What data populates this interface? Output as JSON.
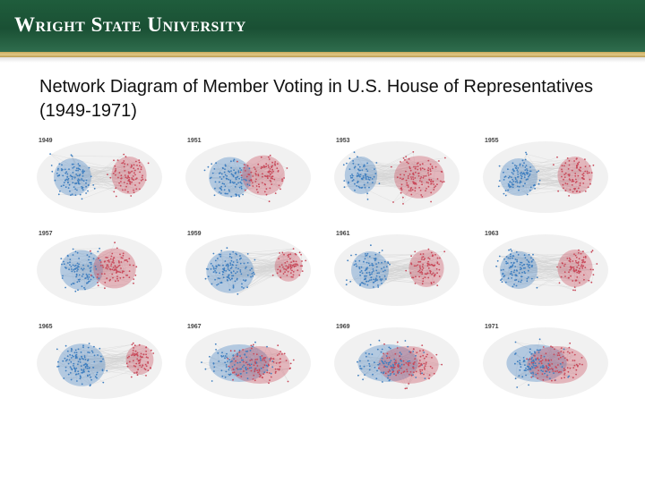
{
  "header": {
    "logo_text": "Wright State University",
    "colors": {
      "green": "#1a5034",
      "gold": "#c6a85a"
    }
  },
  "slide": {
    "title": "Network Diagram of Member Voting in U.S. House of Representatives (1949-1971)"
  },
  "legend_colors": {
    "democrat": "#3f7fc0",
    "republican": "#c9495a"
  },
  "panels": [
    {
      "year": "1949",
      "shape": "separated"
    },
    {
      "year": "1951",
      "shape": "overlap"
    },
    {
      "year": "1953",
      "shape": "separated-red-large"
    },
    {
      "year": "1955",
      "shape": "separated"
    },
    {
      "year": "1957",
      "shape": "overlap"
    },
    {
      "year": "1959",
      "shape": "separated-blue-large"
    },
    {
      "year": "1961",
      "shape": "separated"
    },
    {
      "year": "1963",
      "shape": "separated"
    },
    {
      "year": "1965",
      "shape": "separated-blue-large"
    },
    {
      "year": "1967",
      "shape": "mixed"
    },
    {
      "year": "1969",
      "shape": "mixed"
    },
    {
      "year": "1971",
      "shape": "mixed"
    }
  ]
}
